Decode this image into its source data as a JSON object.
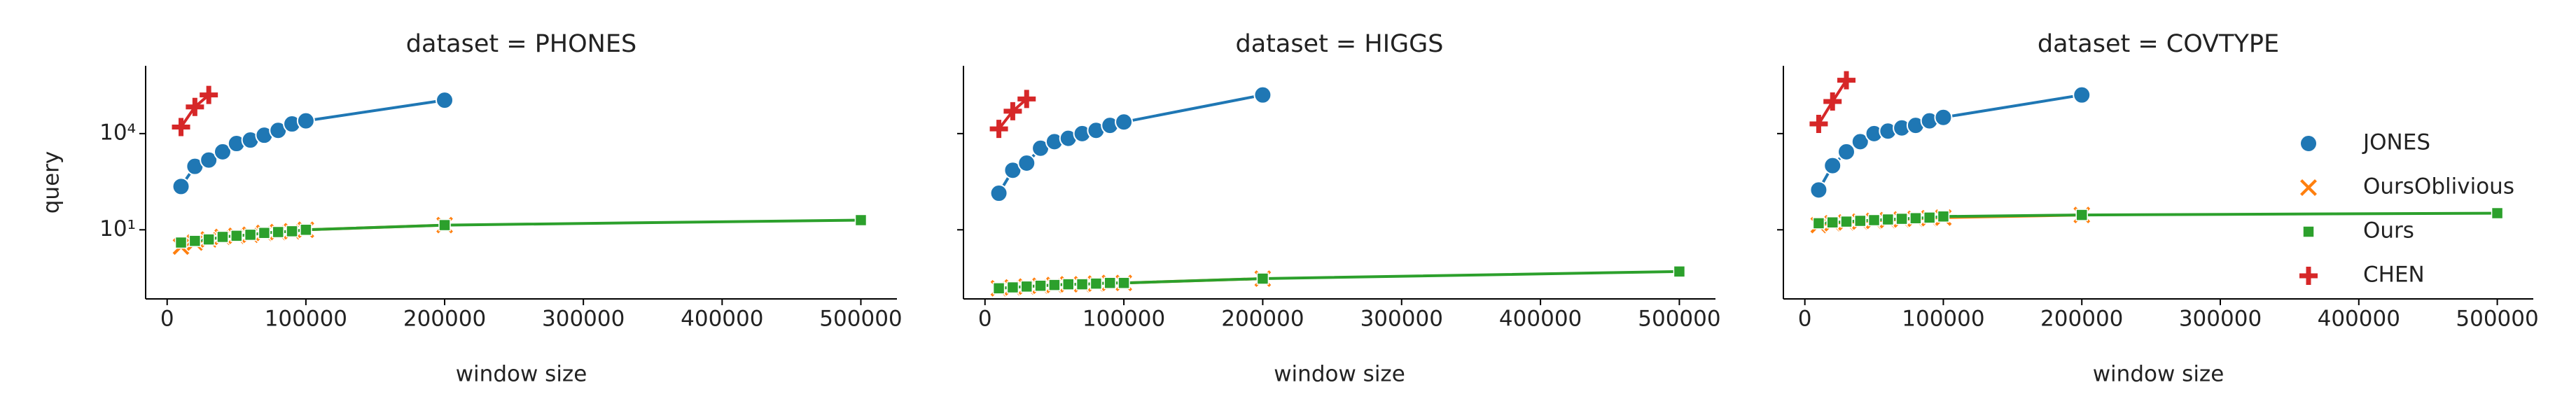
{
  "chart_data": [
    {
      "type": "line",
      "title": "dataset = PHONES",
      "x_label": "window size",
      "y_label": "query",
      "log_y": true,
      "xlim": [
        -15500,
        526000
      ],
      "xticks": [
        0,
        100000,
        200000,
        300000,
        400000,
        500000
      ],
      "ylim": [
        0.07,
        1300000
      ],
      "yticks": [
        {
          "value": 10,
          "label": "10¹"
        },
        {
          "value": 10000,
          "label": "10⁴"
        }
      ],
      "series": [
        {
          "name": "JONES",
          "color": "#1f77b4",
          "marker": "o",
          "x": [
            10000,
            20000,
            30000,
            40000,
            50000,
            60000,
            70000,
            80000,
            90000,
            100000,
            200000
          ],
          "values": [
            224,
            950,
            1500,
            2700,
            4900,
            6300,
            8900,
            12600,
            20000,
            25000,
            110000
          ]
        },
        {
          "name": "OursOblivious",
          "color": "#ff7f0e",
          "marker": "X",
          "x": [
            10000,
            20000,
            30000,
            40000,
            50000,
            60000,
            70000,
            80000,
            90000,
            100000,
            200000
          ],
          "values": [
            3,
            4,
            5,
            6,
            6.5,
            7,
            8,
            8.5,
            9,
            10,
            14
          ]
        },
        {
          "name": "Ours",
          "color": "#2ca02c",
          "marker": "s",
          "x": [
            10000,
            20000,
            30000,
            40000,
            50000,
            60000,
            70000,
            80000,
            90000,
            100000,
            200000,
            500000
          ],
          "values": [
            4,
            4.5,
            5,
            6,
            6.5,
            7,
            8,
            8.5,
            9,
            10,
            14,
            20
          ]
        },
        {
          "name": "CHEN",
          "color": "#d62728",
          "marker": "P",
          "x": [
            10000,
            20000,
            30000
          ],
          "values": [
            16000,
            68000,
            160000
          ]
        }
      ]
    },
    {
      "type": "line",
      "title": "dataset = HIGGS",
      "x_label": "window size",
      "log_y": true,
      "xlim": [
        -15500,
        526000
      ],
      "xticks": [
        0,
        100000,
        200000,
        300000,
        400000,
        500000
      ],
      "ylim": [
        0.07,
        1300000
      ],
      "series": [
        {
          "name": "JONES",
          "color": "#1f77b4",
          "marker": "o",
          "x": [
            10000,
            20000,
            30000,
            40000,
            50000,
            60000,
            70000,
            80000,
            90000,
            100000,
            200000
          ],
          "values": [
            138,
            720,
            1200,
            3500,
            5600,
            7100,
            10000,
            12600,
            18000,
            23000,
            160000
          ]
        },
        {
          "name": "OursOblivious",
          "color": "#ff7f0e",
          "marker": "X",
          "x": [
            10000,
            20000,
            30000,
            40000,
            50000,
            60000,
            70000,
            80000,
            90000,
            100000,
            200000
          ],
          "values": [
            0.15,
            0.16,
            0.17,
            0.18,
            0.19,
            0.2,
            0.2,
            0.21,
            0.22,
            0.22,
            0.3
          ]
        },
        {
          "name": "Ours",
          "color": "#2ca02c",
          "marker": "s",
          "x": [
            10000,
            20000,
            30000,
            40000,
            50000,
            60000,
            70000,
            80000,
            90000,
            100000,
            200000,
            500000
          ],
          "values": [
            0.15,
            0.16,
            0.17,
            0.18,
            0.19,
            0.2,
            0.2,
            0.21,
            0.22,
            0.22,
            0.3,
            0.5
          ]
        },
        {
          "name": "CHEN",
          "color": "#d62728",
          "marker": "P",
          "x": [
            10000,
            20000,
            30000
          ],
          "values": [
            14000,
            50000,
            120000
          ]
        }
      ]
    },
    {
      "type": "line",
      "title": "dataset = COVTYPE",
      "x_label": "window size",
      "log_y": true,
      "legend": "right",
      "xlim": [
        -15500,
        526000
      ],
      "xticks": [
        0,
        100000,
        200000,
        300000,
        400000,
        500000
      ],
      "ylim": [
        0.07,
        1300000
      ],
      "series": [
        {
          "name": "JONES",
          "color": "#1f77b4",
          "marker": "o",
          "x": [
            10000,
            20000,
            30000,
            40000,
            50000,
            60000,
            70000,
            80000,
            90000,
            100000,
            200000
          ],
          "values": [
            175,
            1000,
            2700,
            5600,
            10000,
            12000,
            15000,
            18000,
            25000,
            32000,
            160000
          ]
        },
        {
          "name": "OursOblivious",
          "color": "#ff7f0e",
          "marker": "X",
          "x": [
            10000,
            20000,
            30000,
            40000,
            50000,
            60000,
            70000,
            80000,
            90000,
            100000,
            200000
          ],
          "values": [
            14,
            16,
            17,
            18,
            19,
            20,
            21,
            22,
            23,
            24,
            29
          ]
        },
        {
          "name": "Ours",
          "color": "#2ca02c",
          "marker": "s",
          "x": [
            10000,
            20000,
            30000,
            40000,
            50000,
            60000,
            70000,
            80000,
            90000,
            100000,
            200000,
            500000
          ],
          "values": [
            16,
            17,
            18,
            19,
            20,
            21,
            22,
            23,
            24,
            26,
            29,
            33
          ]
        },
        {
          "name": "CHEN",
          "color": "#d62728",
          "marker": "P",
          "x": [
            10000,
            20000,
            30000
          ],
          "values": [
            20000,
            100000,
            460000
          ]
        }
      ]
    }
  ]
}
